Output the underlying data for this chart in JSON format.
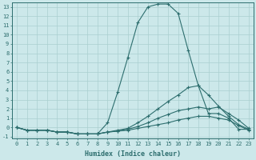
{
  "xlabel": "Humidex (Indice chaleur)",
  "background_color": "#cce8ea",
  "line_color": "#2d6e6e",
  "grid_color": "#aacfcf",
  "xlim": [
    -0.5,
    23.5
  ],
  "ylim": [
    -1.2,
    13.5
  ],
  "xticks": [
    0,
    1,
    2,
    3,
    4,
    5,
    6,
    7,
    8,
    9,
    10,
    11,
    12,
    13,
    14,
    15,
    16,
    17,
    18,
    19,
    20,
    21,
    22,
    23
  ],
  "yticks": [
    -1,
    0,
    1,
    2,
    3,
    4,
    5,
    6,
    7,
    8,
    9,
    10,
    11,
    12,
    13
  ],
  "curve1_x": [
    0,
    1,
    2,
    3,
    4,
    5,
    6,
    7,
    8,
    9,
    10,
    11,
    12,
    13,
    14,
    15,
    16,
    17,
    18,
    19,
    20,
    21,
    22,
    23
  ],
  "curve1_y": [
    0.0,
    -0.3,
    -0.3,
    -0.3,
    -0.5,
    -0.5,
    -0.7,
    -0.7,
    -0.7,
    0.5,
    3.8,
    7.5,
    11.3,
    13.0,
    13.3,
    13.3,
    12.3,
    8.3,
    4.5,
    1.5,
    1.5,
    1.0,
    -0.2,
    -0.2
  ],
  "curve2_x": [
    0,
    1,
    2,
    3,
    4,
    5,
    6,
    7,
    8,
    9,
    10,
    11,
    12,
    13,
    14,
    15,
    16,
    17,
    18,
    19,
    20,
    21,
    22,
    23
  ],
  "curve2_y": [
    0.0,
    -0.3,
    -0.3,
    -0.3,
    -0.5,
    -0.5,
    -0.7,
    -0.7,
    -0.7,
    -0.5,
    -0.3,
    -0.1,
    0.5,
    1.2,
    2.0,
    2.8,
    3.5,
    4.3,
    4.5,
    3.5,
    2.3,
    1.2,
    0.3,
    -0.2
  ],
  "curve3_x": [
    0,
    1,
    2,
    3,
    4,
    5,
    6,
    7,
    8,
    9,
    10,
    11,
    12,
    13,
    14,
    15,
    16,
    17,
    18,
    19,
    20,
    21,
    22,
    23
  ],
  "curve3_y": [
    0.0,
    -0.3,
    -0.3,
    -0.3,
    -0.5,
    -0.5,
    -0.7,
    -0.7,
    -0.7,
    -0.5,
    -0.4,
    -0.2,
    0.1,
    0.5,
    1.0,
    1.4,
    1.8,
    2.0,
    2.2,
    2.0,
    2.2,
    1.5,
    0.8,
    -0.1
  ],
  "curve4_x": [
    0,
    1,
    2,
    3,
    4,
    5,
    6,
    7,
    8,
    9,
    10,
    11,
    12,
    13,
    14,
    15,
    16,
    17,
    18,
    19,
    20,
    21,
    22,
    23
  ],
  "curve4_y": [
    0.0,
    -0.3,
    -0.3,
    -0.3,
    -0.5,
    -0.5,
    -0.7,
    -0.7,
    -0.7,
    -0.5,
    -0.4,
    -0.3,
    -0.1,
    0.1,
    0.3,
    0.5,
    0.8,
    1.0,
    1.2,
    1.2,
    1.0,
    0.8,
    0.2,
    -0.3
  ]
}
